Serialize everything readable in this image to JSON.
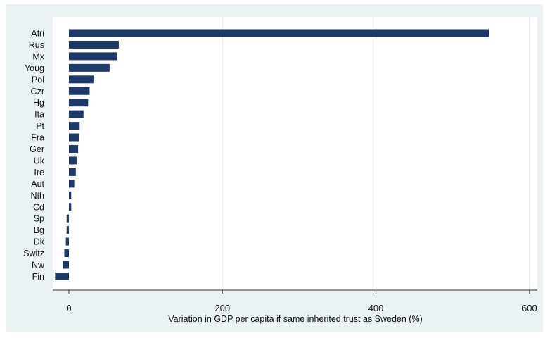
{
  "chart_data": {
    "type": "bar",
    "orientation": "horizontal",
    "categories": [
      "Afri",
      "Rus",
      "Mx",
      "Youg",
      "Pol",
      "Czr",
      "Hg",
      "Ita",
      "Pt",
      "Fra",
      "Ger",
      "Uk",
      "Ire",
      "Aut",
      "Nth",
      "Cd",
      "Sp",
      "Bg",
      "Dk",
      "Switz",
      "Nw",
      "Fin"
    ],
    "values": [
      547,
      65,
      63,
      53,
      32,
      27,
      25,
      19,
      14,
      13,
      12,
      10,
      9,
      7,
      3,
      3,
      -3,
      -3,
      -4,
      -6,
      -8,
      -18
    ],
    "xlabel": "Variation in GDP per capita if same inherited trust as Sweden (%)",
    "ylabel": "",
    "xlim": [
      -20,
      600
    ],
    "xticks": [
      0,
      200,
      400,
      600
    ],
    "xtick_labels": [
      "0",
      "200",
      "400",
      "600"
    ],
    "grid": "vertical",
    "legend": "none",
    "colors": {
      "bar": "#1f3a68",
      "plot_background": "#ffffff",
      "outer_background": "#eaf2f3",
      "grid": "#e3e3e3",
      "axis": "#333333"
    }
  }
}
